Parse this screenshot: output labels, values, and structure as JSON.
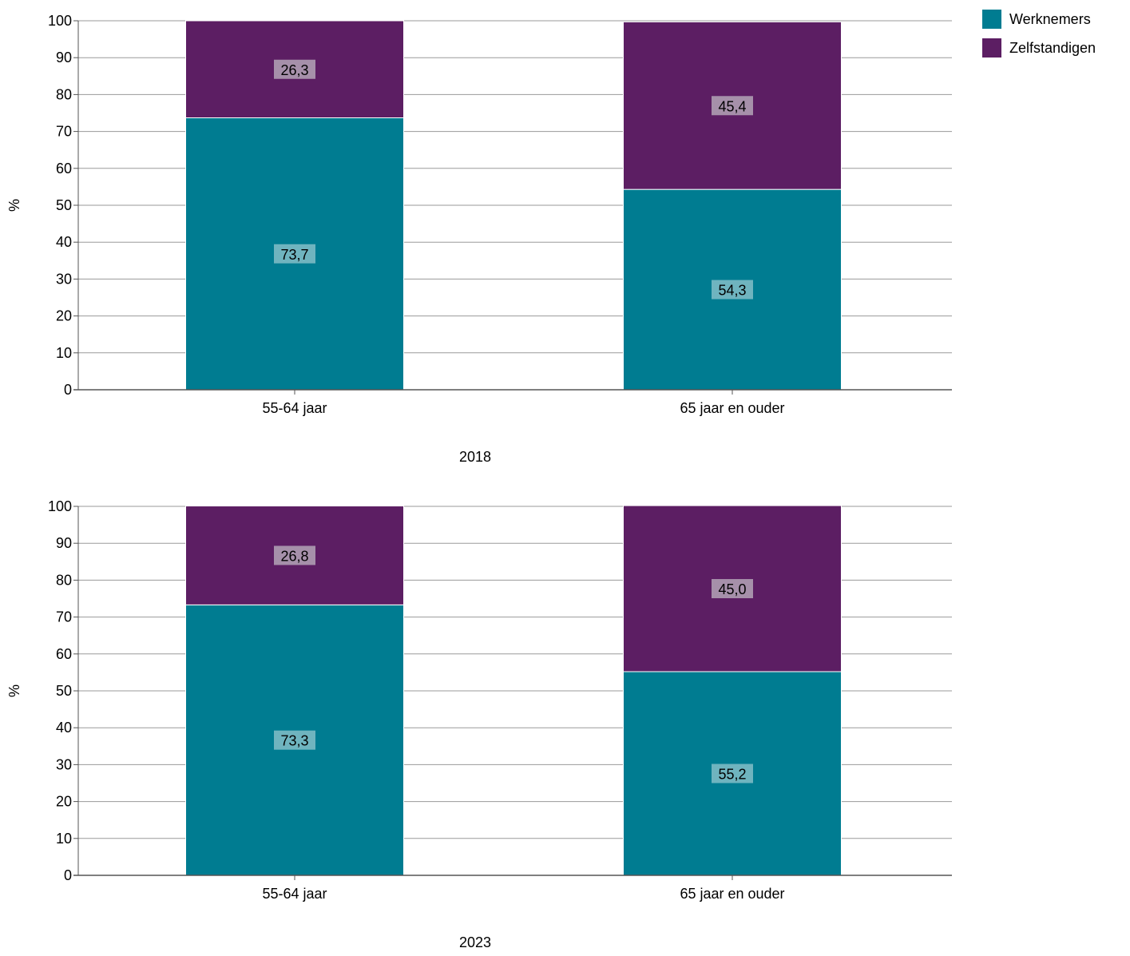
{
  "legend": {
    "position": "top-right",
    "items": [
      {
        "label": "Werknemers",
        "color": "#007c91"
      },
      {
        "label": "Zelfstandigen",
        "color": "#5c1e63"
      }
    ]
  },
  "chart_data": [
    {
      "type": "bar",
      "stacked": true,
      "title": "2018",
      "ylabel": "%",
      "ylim": [
        0,
        100
      ],
      "yticks": [
        "0",
        "10",
        "20",
        "30",
        "40",
        "50",
        "60",
        "70",
        "80",
        "90",
        "100"
      ],
      "grid": true,
      "categories": [
        "55-64 jaar",
        "65 jaar en ouder"
      ],
      "series": [
        {
          "name": "Werknemers",
          "color": "#007c91",
          "values": [
            73.7,
            54.3
          ],
          "labels": [
            "73,7",
            "54,3"
          ]
        },
        {
          "name": "Zelfstandigen",
          "color": "#5c1e63",
          "values": [
            26.3,
            45.4
          ],
          "labels": [
            "26,3",
            "45,4"
          ]
        }
      ]
    },
    {
      "type": "bar",
      "stacked": true,
      "title": "2023",
      "ylabel": "%",
      "ylim": [
        0,
        100
      ],
      "yticks": [
        "0",
        "10",
        "20",
        "30",
        "40",
        "50",
        "60",
        "70",
        "80",
        "90",
        "100"
      ],
      "grid": true,
      "categories": [
        "55-64 jaar",
        "65 jaar en ouder"
      ],
      "series": [
        {
          "name": "Werknemers",
          "color": "#007c91",
          "values": [
            73.3,
            55.2
          ],
          "labels": [
            "73,3",
            "55,2"
          ]
        },
        {
          "name": "Zelfstandigen",
          "color": "#5c1e63",
          "values": [
            26.8,
            45.0
          ],
          "labels": [
            "26,8",
            "45,0"
          ]
        }
      ]
    }
  ]
}
